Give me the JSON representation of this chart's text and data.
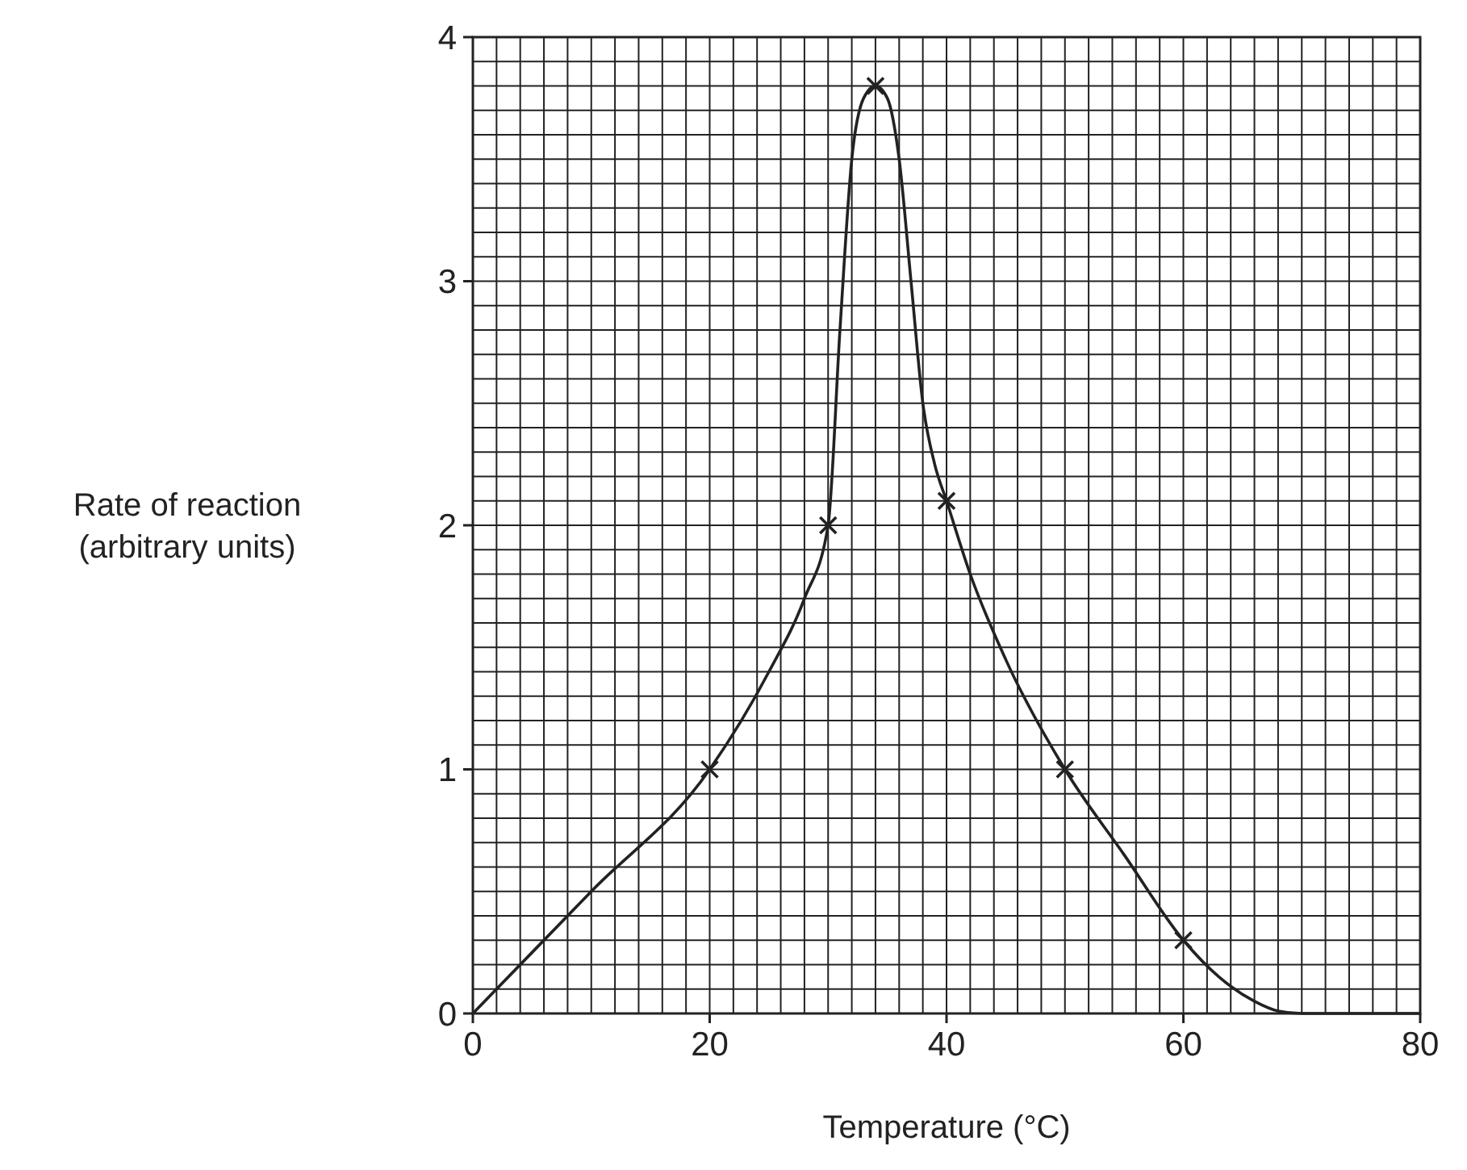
{
  "chart_data": {
    "type": "line",
    "xlabel": "Temperature (°C)",
    "ylabel": "Rate of reaction\n(arbitrary units)",
    "grid": true,
    "xlim": [
      0,
      80
    ],
    "ylim": [
      0,
      4
    ],
    "xticks": [
      0,
      {
        "value": 2,
        "label": null
      },
      {
        "value": 4,
        "label": null
      },
      {
        "value": 6,
        "label": null
      },
      {
        "value": 8,
        "label": null
      },
      {
        "value": 10,
        "label": null
      },
      {
        "value": 12,
        "label": null
      },
      {
        "value": 14,
        "label": null
      },
      {
        "value": 16,
        "label": null
      },
      {
        "value": 18,
        "label": null
      },
      20,
      {
        "value": 22,
        "label": null
      },
      {
        "value": 24,
        "label": null
      },
      {
        "value": 26,
        "label": null
      },
      {
        "value": 28,
        "label": null
      },
      {
        "value": 30,
        "label": null
      },
      {
        "value": 32,
        "label": null
      },
      {
        "value": 34,
        "label": null
      },
      {
        "value": 36,
        "label": null
      },
      {
        "value": 38,
        "label": null
      },
      40,
      {
        "value": 42,
        "label": null
      },
      {
        "value": 44,
        "label": null
      },
      {
        "value": 46,
        "label": null
      },
      {
        "value": 48,
        "label": null
      },
      {
        "value": 50,
        "label": null
      },
      {
        "value": 52,
        "label": null
      },
      {
        "value": 54,
        "label": null
      },
      {
        "value": 56,
        "label": null
      },
      {
        "value": 58,
        "label": null
      },
      60,
      {
        "value": 62,
        "label": null
      },
      {
        "value": 64,
        "label": null
      },
      {
        "value": 66,
        "label": null
      },
      {
        "value": 68,
        "label": null
      },
      {
        "value": 70,
        "label": null
      },
      {
        "value": 72,
        "label": null
      },
      {
        "value": 74,
        "label": null
      },
      {
        "value": 76,
        "label": null
      },
      {
        "value": 78,
        "label": null
      },
      80
    ],
    "yticks": [
      0,
      {
        "value": 0.1,
        "label": null
      },
      {
        "value": 0.2,
        "label": null
      },
      {
        "value": 0.3,
        "label": null
      },
      {
        "value": 0.4,
        "label": null
      },
      {
        "value": 0.5,
        "label": null
      },
      {
        "value": 0.6,
        "label": null
      },
      {
        "value": 0.7,
        "label": null
      },
      {
        "value": 0.8,
        "label": null
      },
      {
        "value": 0.9,
        "label": null
      },
      1,
      {
        "value": 1.1,
        "label": null
      },
      {
        "value": 1.2,
        "label": null
      },
      {
        "value": 1.3,
        "label": null
      },
      {
        "value": 1.4,
        "label": null
      },
      {
        "value": 1.5,
        "label": null
      },
      {
        "value": 1.6,
        "label": null
      },
      {
        "value": 1.7,
        "label": null
      },
      {
        "value": 1.8,
        "label": null
      },
      {
        "value": 1.9,
        "label": null
      },
      2,
      {
        "value": 2.1,
        "label": null
      },
      {
        "value": 2.2,
        "label": null
      },
      {
        "value": 2.3,
        "label": null
      },
      {
        "value": 2.4,
        "label": null
      },
      {
        "value": 2.5,
        "label": null
      },
      {
        "value": 2.6,
        "label": null
      },
      {
        "value": 2.7,
        "label": null
      },
      {
        "value": 2.8,
        "label": null
      },
      {
        "value": 2.9,
        "label": null
      },
      3,
      {
        "value": 3.1,
        "label": null
      },
      {
        "value": 3.2,
        "label": null
      },
      {
        "value": 3.3,
        "label": null
      },
      {
        "value": 3.4,
        "label": null
      },
      {
        "value": 3.5,
        "label": null
      },
      {
        "value": 3.6,
        "label": null
      },
      {
        "value": 3.7,
        "label": null
      },
      {
        "value": 3.8,
        "label": null
      },
      {
        "value": 3.9,
        "label": null
      },
      4
    ],
    "series": [
      {
        "color": "#222222",
        "marker": "none",
        "x": [
          0,
          10,
          20,
          25,
          28,
          30,
          31,
          32,
          33,
          34,
          35,
          36,
          37,
          38,
          39,
          40,
          42,
          45,
          50,
          55,
          60,
          63,
          66,
          68,
          70,
          80
        ],
        "values": [
          0,
          0.5,
          1.0,
          1.4,
          1.7,
          2.0,
          2.8,
          3.5,
          3.75,
          3.8,
          3.75,
          3.5,
          3.0,
          2.5,
          2.25,
          2.1,
          1.8,
          1.45,
          1.0,
          0.65,
          0.3,
          0.15,
          0.05,
          0.01,
          0,
          0
        ]
      },
      {
        "type": "scatter",
        "color": "#222222",
        "marker": "cross",
        "x": [
          20,
          30,
          34,
          40,
          50,
          60
        ],
        "values": [
          1,
          2,
          3.8,
          2.1,
          1,
          0.3
        ]
      }
    ]
  }
}
